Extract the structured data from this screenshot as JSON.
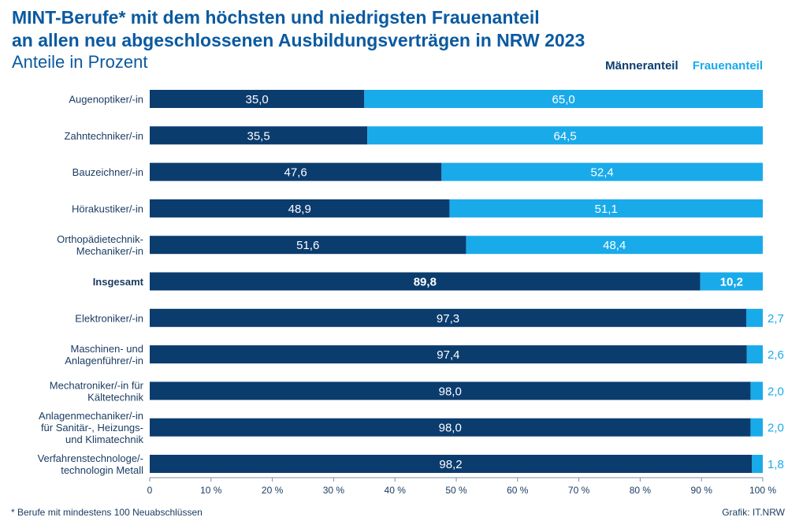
{
  "title_line1": "MINT-Berufe* mit dem höchsten und niedrigsten Frauenanteil",
  "title_line2": "an allen neu abgeschlossenen Ausbildungsverträgen in NRW 2023",
  "subtitle": "Anteile in Prozent",
  "footnote": "*  Berufe mit mindestens 100 Neuabschlüssen",
  "credit": "Grafik: IT.NRW",
  "colors": {
    "maenner": "#0b3c6e",
    "frauen": "#19aaea",
    "title": "#0a5aa0",
    "label": "#1b3d63"
  },
  "chart_data": {
    "type": "bar",
    "orientation": "horizontal",
    "stacked": true,
    "categories": [
      [
        "Augenoptiker/-in"
      ],
      [
        "Zahntechniker/-in"
      ],
      [
        "Bauzeichner/-in"
      ],
      [
        "Hörakustiker/-in"
      ],
      [
        "Orthopädietechnik-",
        "Mechaniker/-in"
      ],
      [
        "Insgesamt"
      ],
      [
        "Elektroniker/-in"
      ],
      [
        "Maschinen- und",
        "Anlagenführer/-in"
      ],
      [
        "Mechatroniker/-in für",
        "Kältetechnik"
      ],
      [
        "Anlagenmechaniker/-in",
        "für Sanitär-, Heizungs-",
        "und Klimatechnik"
      ],
      [
        "Verfahrenstechnologe/-",
        "technologin Metall"
      ]
    ],
    "highlight_index": 5,
    "series": [
      {
        "name": "Männeranteil",
        "values": [
          35.0,
          35.5,
          47.6,
          48.9,
          51.6,
          89.8,
          97.3,
          97.4,
          98.0,
          98.0,
          98.2
        ],
        "labels": [
          "35,0",
          "35,5",
          "47,6",
          "48,9",
          "51,6",
          "89,8",
          "97,3",
          "97,4",
          "98,0",
          "98,0",
          "98,2"
        ]
      },
      {
        "name": "Frauenanteil",
        "values": [
          65.0,
          64.5,
          52.4,
          51.1,
          48.4,
          10.2,
          2.7,
          2.6,
          2.0,
          2.0,
          1.8
        ],
        "labels": [
          "65,0",
          "64,5",
          "52,4",
          "51,1",
          "48,4",
          "10,2",
          "2,7",
          "2,6",
          "2,0",
          "2,0",
          "1,8"
        ]
      }
    ],
    "xlim": [
      0,
      100
    ],
    "xticks": [
      "0",
      "10 %",
      "20 %",
      "30 %",
      "40 %",
      "50 %",
      "60 %",
      "70 %",
      "80 %",
      "90 %",
      "100 %"
    ],
    "legend_position": "top-right",
    "grid": false
  }
}
